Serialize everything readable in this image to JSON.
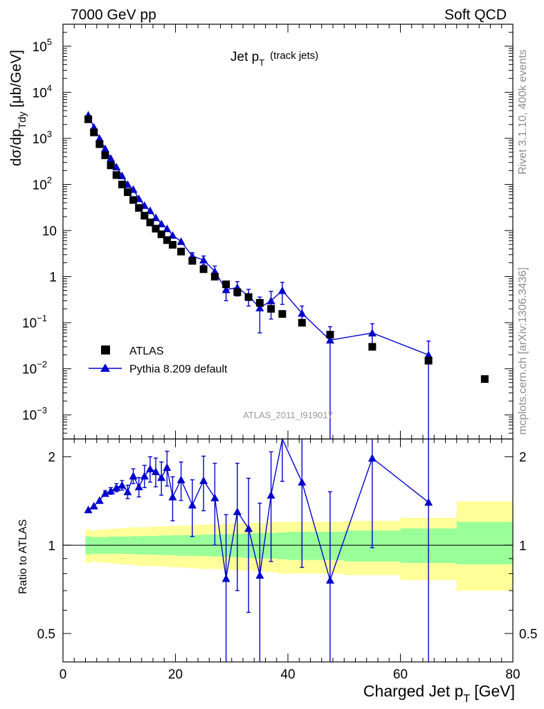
{
  "header": {
    "left": "7000 GeV pp",
    "right": "Soft QCD",
    "rivet": "Rivet 3.1.10,  400k events",
    "mcplots": "mcplots.cern.ch [arXiv:1306.3436]",
    "analysis": "ATLAS_2011_I919017"
  },
  "colors": {
    "data": "#000000",
    "mc": "#0000cc",
    "band_inner": "#99ff99",
    "band_outer": "#ffff99",
    "side_text": "#8c8c8c"
  },
  "chart_data": [
    {
      "type": "scatter",
      "title": "Jet p_T (track jets)",
      "title_main": "Jet p",
      "title_sub": "T",
      "title_paren": "(track jets)",
      "ylabel": "dσ/dp_Tdy [μb/GeV]",
      "ylabel_parts": [
        "dσ/dp",
        "Tdy",
        " [μb/GeV]"
      ],
      "yscale": "log",
      "xlim": [
        0,
        80
      ],
      "ylim": [
        0.0003,
        300000
      ],
      "yticks": [
        {
          "value": 0.001,
          "base": "10",
          "exp": "−3"
        },
        {
          "value": 0.01,
          "base": "10",
          "exp": "−2"
        },
        {
          "value": 0.1,
          "base": "10",
          "exp": "−1"
        },
        {
          "value": 1,
          "base": "1",
          "exp": ""
        },
        {
          "value": 10,
          "base": "10",
          "exp": ""
        },
        {
          "value": 100,
          "base": "10",
          "exp": "2"
        },
        {
          "value": 1000,
          "base": "10",
          "exp": "3"
        },
        {
          "value": 10000,
          "base": "10",
          "exp": "4"
        },
        {
          "value": 100000,
          "base": "10",
          "exp": "5"
        }
      ],
      "legend": {
        "position": "bottom-left",
        "entries": [
          "ATLAS",
          "Pythia 8.209 default"
        ]
      },
      "series": [
        {
          "name": "ATLAS",
          "marker": "square",
          "x": [
            4.5,
            5.5,
            6.5,
            7.5,
            8.5,
            9.5,
            10.5,
            11.5,
            12.5,
            13.5,
            14.5,
            15.5,
            16.5,
            17.5,
            18.5,
            19.5,
            21,
            23,
            25,
            27,
            29,
            31,
            33,
            35,
            37,
            39,
            42.5,
            47.5,
            55,
            65,
            75
          ],
          "y": [
            2600,
            1350,
            750,
            430,
            260,
            160,
            100,
            68,
            46,
            31,
            21,
            15,
            11,
            8.3,
            6.2,
            4.9,
            3.5,
            2.2,
            1.45,
            1.0,
            0.68,
            0.46,
            0.36,
            0.27,
            0.2,
            0.155,
            0.1,
            0.055,
            0.03,
            0.015,
            0.006
          ]
        },
        {
          "name": "Pythia 8.209 default",
          "marker": "triangle",
          "x": [
            4.5,
            5.5,
            6.5,
            7.5,
            8.5,
            9.5,
            10.5,
            11.5,
            12.5,
            13.5,
            14.5,
            15.5,
            16.5,
            17.5,
            18.5,
            19.5,
            21,
            23,
            25,
            27,
            29,
            31,
            33,
            35,
            37,
            39,
            42.5,
            47.5,
            55,
            65
          ],
          "y": [
            3200,
            1750,
            1000,
            600,
            370,
            240,
            155,
            100,
            78,
            49,
            35,
            27,
            19,
            14,
            11,
            7.9,
            5.8,
            2.8,
            2.3,
            1.3,
            0.52,
            0.58,
            0.38,
            0.21,
            0.3,
            0.5,
            0.16,
            0.042,
            0.06,
            0.02
          ],
          "yerr_lo": [
            0,
            0,
            0,
            0,
            0,
            0,
            0,
            0,
            0,
            0,
            0,
            0,
            0,
            0,
            0,
            0,
            0,
            0.5,
            0.5,
            0.4,
            0.22,
            0.2,
            0.15,
            0.15,
            0.18,
            0.25,
            0.07,
            0.042,
            0.03,
            0.02
          ],
          "yerr_hi": [
            0,
            0,
            0,
            0,
            0,
            0,
            0,
            0,
            0,
            0,
            0,
            0,
            0,
            0,
            0,
            0,
            0,
            0.5,
            0.5,
            0.4,
            0.22,
            0.2,
            0.15,
            0.15,
            0.18,
            0.25,
            0.07,
            0.04,
            0.035,
            0.02
          ]
        }
      ]
    },
    {
      "type": "line",
      "ylabel": "Ratio to ATLAS",
      "xlabel_main": "Charged Jet p",
      "xlabel_sub": "T",
      "xlabel_unit": "[GeV]",
      "xlim": [
        0,
        80
      ],
      "ylim": [
        0.4,
        2.3
      ],
      "yscale": "log",
      "xticks": [
        0,
        20,
        40,
        60,
        80
      ],
      "xtick_labels": [
        "0",
        "20",
        "40",
        "60",
        "80"
      ],
      "yticks": [
        0.5,
        1,
        2
      ],
      "ytick_labels": [
        "0.5",
        "1",
        "2"
      ],
      "band": {
        "edges": [
          4,
          5,
          6,
          7,
          8,
          9,
          10,
          11,
          12,
          13,
          14,
          15,
          16,
          17,
          18,
          19,
          20,
          22,
          24,
          26,
          28,
          30,
          32,
          34,
          36,
          38,
          40,
          45,
          50,
          60,
          70,
          80
        ],
        "inner_lo": [
          0.93,
          0.935,
          0.935,
          0.935,
          0.935,
          0.935,
          0.935,
          0.932,
          0.932,
          0.93,
          0.93,
          0.928,
          0.928,
          0.925,
          0.925,
          0.925,
          0.92,
          0.92,
          0.918,
          0.915,
          0.912,
          0.91,
          0.905,
          0.9,
          0.9,
          0.895,
          0.89,
          0.89,
          0.88,
          0.87,
          0.86
        ],
        "inner_hi": [
          1.07,
          1.065,
          1.065,
          1.065,
          1.07,
          1.07,
          1.07,
          1.07,
          1.072,
          1.072,
          1.075,
          1.075,
          1.075,
          1.078,
          1.078,
          1.08,
          1.08,
          1.082,
          1.085,
          1.088,
          1.09,
          1.092,
          1.095,
          1.1,
          1.1,
          1.105,
          1.11,
          1.11,
          1.12,
          1.14,
          1.2
        ],
        "outer_lo": [
          0.87,
          0.88,
          0.875,
          0.87,
          0.87,
          0.865,
          0.86,
          0.86,
          0.855,
          0.85,
          0.85,
          0.85,
          0.848,
          0.845,
          0.845,
          0.84,
          0.84,
          0.835,
          0.83,
          0.83,
          0.825,
          0.82,
          0.82,
          0.815,
          0.81,
          0.8,
          0.8,
          0.8,
          0.79,
          0.76,
          0.7
        ],
        "outer_hi": [
          1.13,
          1.12,
          1.13,
          1.13,
          1.135,
          1.14,
          1.14,
          1.145,
          1.15,
          1.15,
          1.15,
          1.155,
          1.155,
          1.16,
          1.16,
          1.16,
          1.165,
          1.17,
          1.175,
          1.18,
          1.18,
          1.185,
          1.19,
          1.19,
          1.2,
          1.2,
          1.2,
          1.2,
          1.21,
          1.24,
          1.41
        ]
      },
      "series": [
        {
          "name": "Pythia 8.209 default",
          "x": [
            4.5,
            5.5,
            6.5,
            7.5,
            8.5,
            9.5,
            10.5,
            11.5,
            12.5,
            13.5,
            14.5,
            15.5,
            16.5,
            17.5,
            18.5,
            19.5,
            21,
            23,
            25,
            27,
            29,
            31,
            33,
            35,
            37,
            39,
            42.5,
            47.5,
            55,
            65
          ],
          "y": [
            1.32,
            1.36,
            1.42,
            1.5,
            1.53,
            1.57,
            1.6,
            1.52,
            1.72,
            1.58,
            1.72,
            1.82,
            1.78,
            1.7,
            1.84,
            1.46,
            1.67,
            1.37,
            1.66,
            1.45,
            0.77,
            1.3,
            1.14,
            0.79,
            1.48,
            2.45,
            1.64,
            0.76,
            1.98,
            1.4
          ],
          "yerr_lo": [
            0,
            0,
            0,
            0.03,
            0.04,
            0.05,
            0.06,
            0.08,
            0.1,
            0.12,
            0.15,
            0.18,
            0.2,
            0.22,
            0.25,
            0.25,
            0.25,
            0.3,
            0.35,
            0.45,
            0.5,
            0.6,
            0.55,
            0.6,
            0.6,
            0.8,
            0.8,
            0.76,
            1.0,
            1.4
          ],
          "yerr_hi": [
            0,
            0,
            0,
            0.03,
            0.04,
            0.05,
            0.06,
            0.08,
            0.1,
            0.12,
            0.15,
            0.18,
            0.2,
            0.22,
            0.25,
            0.25,
            0.25,
            0.3,
            0.35,
            0.45,
            0.5,
            0.6,
            0.55,
            0.6,
            0.6,
            0.8,
            0.8,
            0.76,
            1.0,
            1.4
          ]
        }
      ]
    }
  ]
}
